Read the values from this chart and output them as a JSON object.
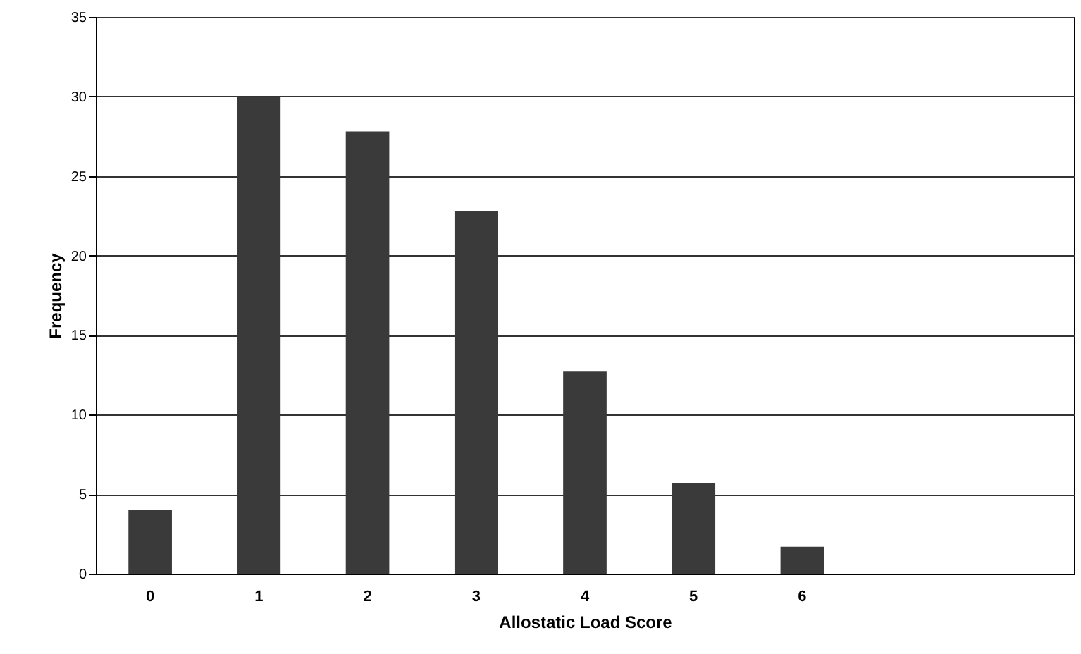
{
  "chart_data": {
    "type": "bar",
    "xlabel": "Allostatic Load Score",
    "ylabel": "Frequency",
    "categories": [
      "0",
      "1",
      "2",
      "3",
      "4",
      "5",
      "6",
      null,
      null
    ],
    "values": [
      4,
      30,
      27.8,
      22.8,
      12.7,
      5.7,
      1.7,
      null,
      null
    ],
    "color": "#3a3a3a",
    "ylim": [
      0,
      35
    ],
    "yticks": [
      0,
      5,
      10,
      15,
      20,
      25,
      30,
      35
    ],
    "grid": "y"
  }
}
